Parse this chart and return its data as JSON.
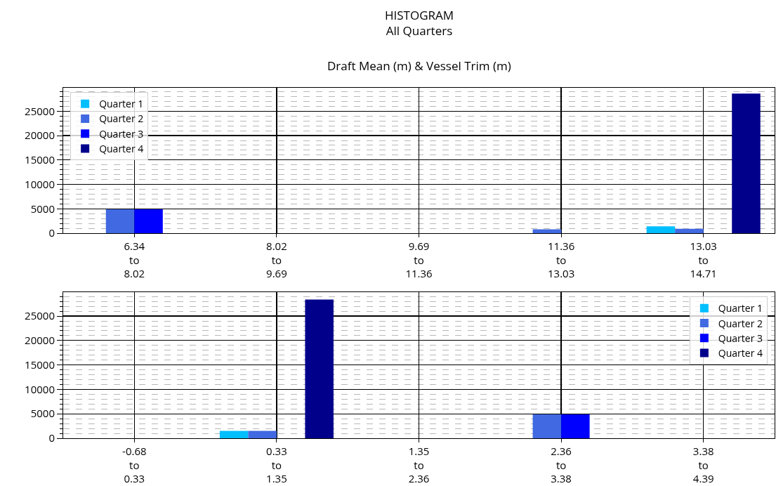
{
  "chart_data": [
    {
      "type": "bar",
      "title": "HISTOGRAM\nAll Quarters",
      "subtitle": "Draft Mean (m) & Vessel Trim (m)",
      "categories": [
        "6.34\nto\n8.02",
        "8.02\nto\n9.69",
        "9.69\nto\n11.36",
        "11.36\nto\n13.03",
        "13.03\nto\n14.71"
      ],
      "series": [
        {
          "name": "Quarter 1",
          "color": "#00bfff",
          "values": [
            0,
            0,
            0,
            0,
            1400
          ]
        },
        {
          "name": "Quarter 2",
          "color": "#4169e1",
          "values": [
            4900,
            0,
            0,
            800,
            900
          ]
        },
        {
          "name": "Quarter 3",
          "color": "#0000ff",
          "values": [
            4900,
            0,
            0,
            0,
            0
          ]
        },
        {
          "name": "Quarter 4",
          "color": "#00008b",
          "values": [
            0,
            0,
            0,
            0,
            28600
          ]
        }
      ],
      "ylim": [
        0,
        29800
      ],
      "yticks": [
        0,
        5000,
        10000,
        15000,
        20000,
        25000
      ],
      "grid": true,
      "legend": "top left"
    },
    {
      "type": "bar",
      "categories": [
        "-0.68\nto\n0.33",
        "0.33\nto\n1.35",
        "1.35\nto\n2.36",
        "2.36\nto\n3.38",
        "3.38\nto\n4.39"
      ],
      "series": [
        {
          "name": "Quarter 1",
          "color": "#00bfff",
          "values": [
            0,
            1500,
            0,
            0,
            0
          ]
        },
        {
          "name": "Quarter 2",
          "color": "#4169e1",
          "values": [
            0,
            1500,
            0,
            4900,
            0
          ]
        },
        {
          "name": "Quarter 3",
          "color": "#0000ff",
          "values": [
            0,
            0,
            0,
            4900,
            0
          ]
        },
        {
          "name": "Quarter 4",
          "color": "#00008b",
          "values": [
            0,
            28400,
            0,
            0,
            0
          ]
        }
      ],
      "ylim": [
        0,
        29900
      ],
      "yticks": [
        0,
        5000,
        10000,
        15000,
        20000,
        25000
      ],
      "grid": true,
      "legend": "top right"
    }
  ]
}
